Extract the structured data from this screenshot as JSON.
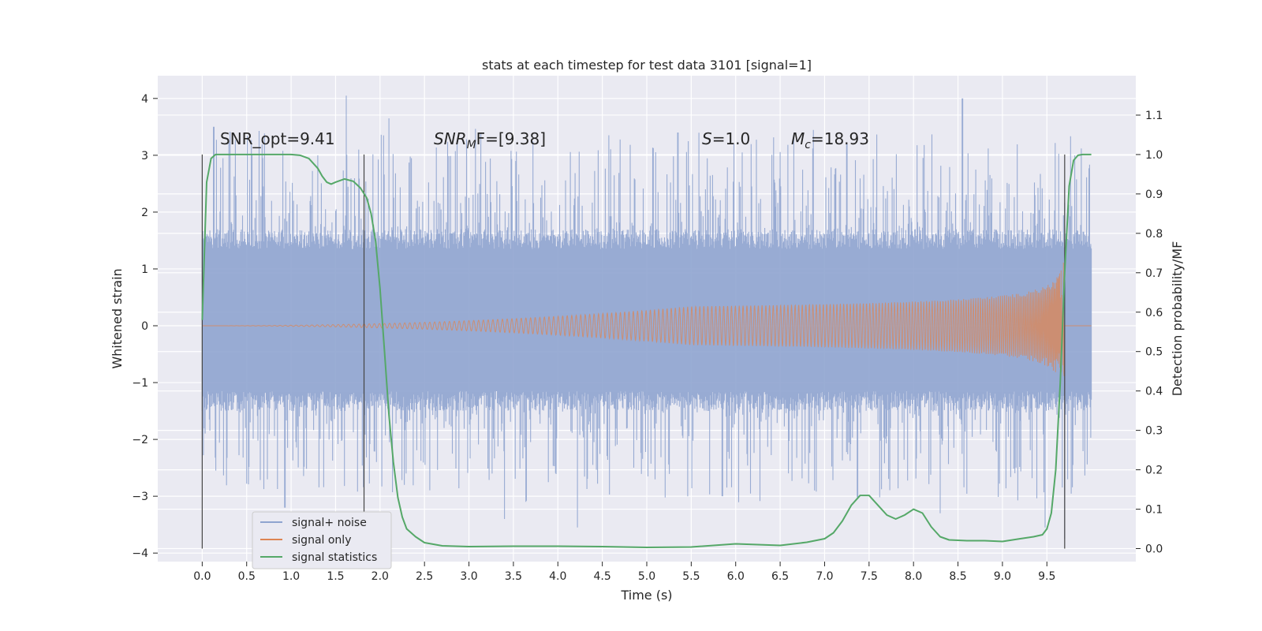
{
  "chart_data": {
    "type": "line",
    "title": "stats at each timestep for test data 3101 [signal=1]",
    "xlabel": "Time (s)",
    "ylabel": "Whitened strain",
    "y2label": "Detection probability/MF",
    "xlim": [
      -0.5,
      10.5
    ],
    "ylim": [
      -4.15,
      4.4
    ],
    "y2lim": [
      -0.033,
      1.2
    ],
    "xticks": [
      "0.0",
      "0.5",
      "1.0",
      "1.5",
      "2.0",
      "2.5",
      "3.0",
      "3.5",
      "4.0",
      "4.5",
      "5.0",
      "5.5",
      "6.0",
      "6.5",
      "7.0",
      "7.5",
      "8.0",
      "8.5",
      "9.0",
      "9.5"
    ],
    "yticks": [
      "4",
      "3",
      "2",
      "1",
      "0",
      "−1",
      "−2",
      "−3",
      "−4"
    ],
    "y2ticks": [
      "1.1",
      "1.0",
      "0.9",
      "0.8",
      "0.7",
      "0.6",
      "0.5",
      "0.4",
      "0.3",
      "0.2",
      "0.1",
      "0.0"
    ],
    "grid": true,
    "legend_position": "lower-left",
    "annotations": {
      "snr_opt": "SNR_opt=9.41",
      "snr_mf_main": "SNR",
      "snr_mf_sub": "M",
      "snr_mf_rest": "F=[9.38]",
      "s_main": "S",
      "s_rest": "=1.0",
      "mc_main": "M",
      "mc_sub": "c",
      "mc_rest": "=18.93"
    },
    "vertical_lines_x": [
      0.0,
      1.82,
      9.7
    ],
    "series": [
      {
        "name": "signal+ noise",
        "color": "#8fa4cf",
        "description_values": "noise spread whitened strain, core band about -1.2 to 1.3, peaks near +4.05 at t=1.62 and +4.0 at t=8.55, min about -3.75 at t=9.7",
        "peaks": [
          [
            0.13,
            3.5
          ],
          [
            0.93,
            -3.2
          ],
          [
            1.62,
            4.05
          ],
          [
            2.1,
            3.65
          ],
          [
            3.4,
            -3.4
          ],
          [
            4.22,
            -3.55
          ],
          [
            5.35,
            3.4
          ],
          [
            5.85,
            -3.0
          ],
          [
            7.25,
            3.2
          ],
          [
            8.55,
            4.0
          ],
          [
            8.3,
            -3.3
          ],
          [
            9.48,
            -3.55
          ],
          [
            9.7,
            -3.75
          ]
        ]
      },
      {
        "name": "signal only",
        "color": "#dd8452",
        "chirp_end_amplitude": 1.3,
        "merger_time": 9.7
      },
      {
        "name": "signal statistics",
        "color": "#55a868",
        "x": [
          0.0,
          0.05,
          0.1,
          0.15,
          0.2,
          0.3,
          0.5,
          0.8,
          1.0,
          1.1,
          1.2,
          1.3,
          1.35,
          1.4,
          1.45,
          1.5,
          1.6,
          1.7,
          1.78,
          1.85,
          1.9,
          1.95,
          2.0,
          2.05,
          2.1,
          2.15,
          2.2,
          2.25,
          2.3,
          2.4,
          2.5,
          2.7,
          3.0,
          3.5,
          4.0,
          4.5,
          5.0,
          5.5,
          6.0,
          6.5,
          6.8,
          7.0,
          7.1,
          7.2,
          7.3,
          7.4,
          7.5,
          7.6,
          7.7,
          7.8,
          7.9,
          8.0,
          8.1,
          8.2,
          8.3,
          8.4,
          8.6,
          8.8,
          9.0,
          9.2,
          9.35,
          9.45,
          9.5,
          9.55,
          9.6,
          9.65,
          9.7,
          9.75,
          9.8,
          9.85,
          9.9,
          10.0
        ],
        "y": [
          0.58,
          0.93,
          0.99,
          1.0,
          1.0,
          1.0,
          1.0,
          1.0,
          1.0,
          0.998,
          0.99,
          0.965,
          0.945,
          0.93,
          0.925,
          0.93,
          0.938,
          0.932,
          0.915,
          0.89,
          0.85,
          0.78,
          0.66,
          0.5,
          0.34,
          0.22,
          0.13,
          0.08,
          0.05,
          0.03,
          0.015,
          0.007,
          0.005,
          0.006,
          0.006,
          0.005,
          0.003,
          0.004,
          0.012,
          0.008,
          0.016,
          0.025,
          0.04,
          0.07,
          0.11,
          0.135,
          0.135,
          0.11,
          0.085,
          0.075,
          0.085,
          0.1,
          0.09,
          0.055,
          0.03,
          0.022,
          0.02,
          0.02,
          0.018,
          0.025,
          0.03,
          0.035,
          0.05,
          0.09,
          0.2,
          0.42,
          0.7,
          0.92,
          0.985,
          0.998,
          1.0,
          1.0
        ]
      }
    ]
  }
}
